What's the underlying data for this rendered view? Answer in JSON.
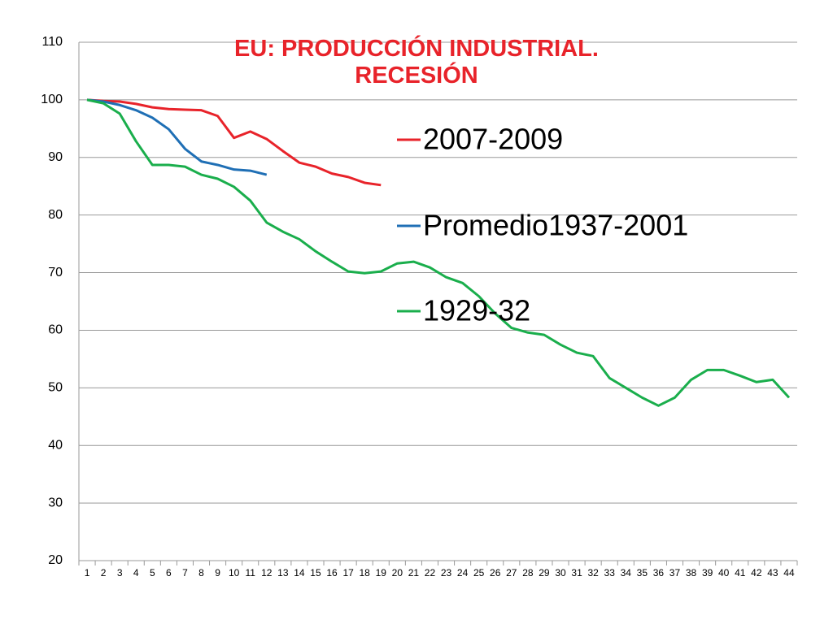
{
  "chart_data": {
    "type": "line",
    "title": "EU: PRODUCCIÓN INDUSTRIAL. RECESIÓN",
    "categories": [
      "1",
      "2",
      "3",
      "4",
      "5",
      "6",
      "7",
      "8",
      "9",
      "10",
      "11",
      "12",
      "13",
      "14",
      "15",
      "16",
      "17",
      "18",
      "19",
      "20",
      "21",
      "22",
      "23",
      "24",
      "25",
      "26",
      "27",
      "28",
      "29",
      "30",
      "31",
      "32",
      "33",
      "34",
      "35",
      "36",
      "37",
      "38",
      "39",
      "40",
      "41",
      "42",
      "43",
      "44"
    ],
    "series": [
      {
        "name": "2007-2009",
        "color": "#e8232a",
        "values": [
          100,
          99.8,
          99.7,
          99.3,
          98.7,
          98.4,
          98.3,
          98.2,
          97.2,
          93.4,
          94.5,
          93.2,
          91.1,
          89.1,
          88.4,
          87.2,
          86.6,
          85.6,
          85.2,
          null,
          null,
          null,
          null,
          null,
          null,
          null,
          null,
          null,
          null,
          null,
          null,
          null,
          null,
          null,
          null,
          null,
          null,
          null,
          null,
          null,
          null,
          null,
          null,
          null
        ]
      },
      {
        "name": "Promedio1937-2001",
        "color": "#1f6fb5",
        "values": [
          100,
          99.7,
          99.1,
          98.2,
          96.9,
          94.9,
          91.5,
          89.3,
          88.7,
          87.9,
          87.7,
          87.0,
          null,
          null,
          null,
          null,
          null,
          null,
          null,
          null,
          null,
          null,
          null,
          null,
          null,
          null,
          null,
          null,
          null,
          null,
          null,
          null,
          null,
          null,
          null,
          null,
          null,
          null,
          null,
          null,
          null,
          null,
          null,
          null
        ]
      },
      {
        "name": "1929-32",
        "color": "#1aae4c",
        "values": [
          100,
          99.4,
          97.6,
          92.8,
          88.7,
          88.7,
          88.4,
          87.0,
          86.3,
          84.9,
          82.5,
          78.7,
          77.1,
          75.8,
          73.7,
          71.9,
          70.2,
          69.9,
          70.2,
          71.6,
          71.9,
          70.9,
          69.2,
          68.2,
          65.9,
          62.9,
          60.4,
          59.6,
          59.2,
          57.5,
          56.1,
          55.5,
          51.7,
          50.0,
          48.3,
          46.9,
          48.3,
          51.4,
          53.1,
          53.1,
          52.1,
          51.0,
          51.4,
          48.3
        ]
      }
    ],
    "ylim": [
      20,
      110
    ],
    "yticks": [
      20,
      30,
      40,
      50,
      60,
      70,
      80,
      90,
      100,
      110
    ],
    "grid": true
  }
}
